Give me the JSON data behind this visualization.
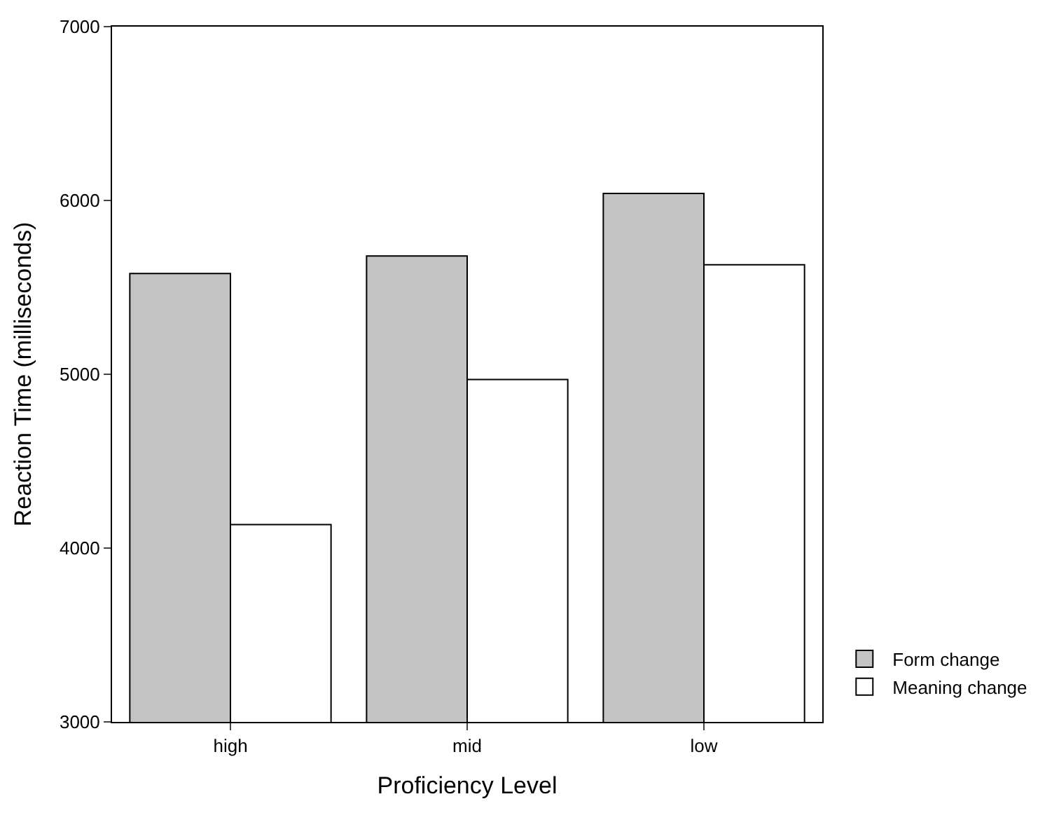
{
  "chart_data": {
    "type": "bar",
    "xlabel": "Proficiency Level",
    "ylabel": "Reaction Time (milliseconds)",
    "categories": [
      "high",
      "mid",
      "low"
    ],
    "series": [
      {
        "name": "Form change",
        "color": "#c4c4c4",
        "values": [
          5580,
          5680,
          6040
        ]
      },
      {
        "name": "Meaning change",
        "color": "#ffffff",
        "values": [
          4135,
          4970,
          5630
        ]
      }
    ],
    "ylim": [
      3000,
      7000
    ],
    "yticks": [
      3000,
      4000,
      5000,
      6000,
      7000
    ],
    "grid": false,
    "legend": "bottom right"
  }
}
